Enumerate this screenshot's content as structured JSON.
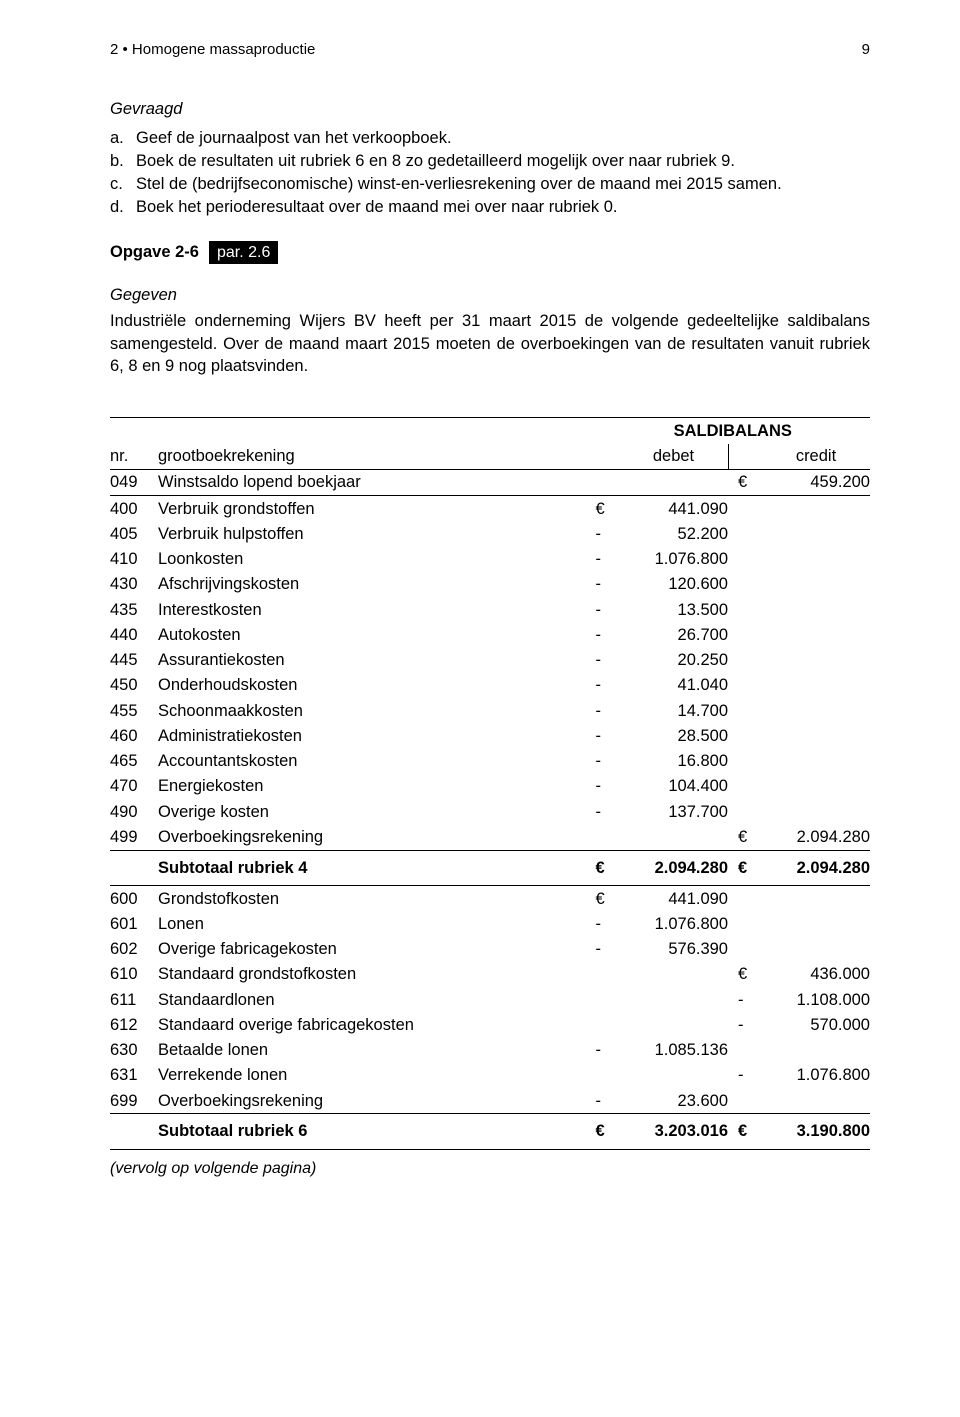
{
  "header": {
    "chapter": "2 • Homogene massaproductie",
    "page_number": "9"
  },
  "gevraagd": {
    "title": "Gevraagd",
    "items": [
      {
        "label": "a.",
        "text": "Geef de journaalpost van het verkoopboek."
      },
      {
        "label": "b.",
        "text": "Boek de resultaten uit rubriek 6 en 8 zo gedetailleerd mogelijk over naar rubriek 9."
      },
      {
        "label": "c.",
        "text": "Stel de (bedrijfseconomische) winst-en-verliesrekening over de maand mei 2015 samen."
      },
      {
        "label": "d.",
        "text": "Boek het perioderesultaat over de maand mei over naar rubriek 0."
      }
    ]
  },
  "opgave": {
    "label": "Opgave 2-6",
    "badge": "par. 2.6"
  },
  "gegeven": {
    "title": "Gegeven",
    "text": "Industriële onderneming Wijers BV heeft per 31 maart 2015 de volgende gedeeltelijke saldibalans samengesteld. Over de maand maart 2015 moeten de overboekingen van de resultaten vanuit rubriek 6, 8 en 9 nog plaatsvinden."
  },
  "table": {
    "header": {
      "saldibalans": "SALDIBALANS",
      "nr": "nr.",
      "name": "grootboekrekening",
      "debet": "debet",
      "credit": "credit"
    },
    "rows_049": [
      {
        "nr": "049",
        "name": "Winstsaldo lopend boekjaar",
        "debet_sym": "",
        "debet": "",
        "credit_sym": "€",
        "credit": "459.200"
      }
    ],
    "rows_4": [
      {
        "nr": "400",
        "name": "Verbruik grondstoffen",
        "debet_sym": "€",
        "debet": "441.090",
        "credit_sym": "",
        "credit": ""
      },
      {
        "nr": "405",
        "name": "Verbruik hulpstoffen",
        "debet_sym": "-",
        "debet": "52.200",
        "credit_sym": "",
        "credit": ""
      },
      {
        "nr": "410",
        "name": "Loonkosten",
        "debet_sym": "-",
        "debet": "1.076.800",
        "credit_sym": "",
        "credit": ""
      },
      {
        "nr": "430",
        "name": "Afschrijvingskosten",
        "debet_sym": "-",
        "debet": "120.600",
        "credit_sym": "",
        "credit": ""
      },
      {
        "nr": "435",
        "name": "Interestkosten",
        "debet_sym": "-",
        "debet": "13.500",
        "credit_sym": "",
        "credit": ""
      },
      {
        "nr": "440",
        "name": "Autokosten",
        "debet_sym": "-",
        "debet": "26.700",
        "credit_sym": "",
        "credit": ""
      },
      {
        "nr": "445",
        "name": "Assurantiekosten",
        "debet_sym": "-",
        "debet": "20.250",
        "credit_sym": "",
        "credit": ""
      },
      {
        "nr": "450",
        "name": "Onderhoudskosten",
        "debet_sym": "-",
        "debet": "41.040",
        "credit_sym": "",
        "credit": ""
      },
      {
        "nr": "455",
        "name": "Schoonmaakkosten",
        "debet_sym": "-",
        "debet": "14.700",
        "credit_sym": "",
        "credit": ""
      },
      {
        "nr": "460",
        "name": "Administratiekosten",
        "debet_sym": "-",
        "debet": "28.500",
        "credit_sym": "",
        "credit": ""
      },
      {
        "nr": "465",
        "name": "Accountantskosten",
        "debet_sym": "-",
        "debet": "16.800",
        "credit_sym": "",
        "credit": ""
      },
      {
        "nr": "470",
        "name": "Energiekosten",
        "debet_sym": "-",
        "debet": "104.400",
        "credit_sym": "",
        "credit": ""
      },
      {
        "nr": "490",
        "name": "Overige kosten",
        "debet_sym": "-",
        "debet": "137.700",
        "credit_sym": "",
        "credit": ""
      },
      {
        "nr": "499",
        "name": "Overboekingsrekening",
        "debet_sym": "",
        "debet": "",
        "credit_sym": "€",
        "credit": "2.094.280"
      }
    ],
    "subtotal_4": {
      "name": "Subtotaal rubriek 4",
      "debet_sym": "€",
      "debet": "2.094.280",
      "credit_sym": "€",
      "credit": "2.094.280"
    },
    "rows_6": [
      {
        "nr": "600",
        "name": "Grondstofkosten",
        "debet_sym": "€",
        "debet": "441.090",
        "credit_sym": "",
        "credit": ""
      },
      {
        "nr": "601",
        "name": "Lonen",
        "debet_sym": "-",
        "debet": "1.076.800",
        "credit_sym": "",
        "credit": ""
      },
      {
        "nr": "602",
        "name": "Overige fabricagekosten",
        "debet_sym": "-",
        "debet": "576.390",
        "credit_sym": "",
        "credit": ""
      },
      {
        "nr": "610",
        "name": "Standaard grondstofkosten",
        "debet_sym": "",
        "debet": "",
        "credit_sym": "€",
        "credit": "436.000"
      },
      {
        "nr": "611",
        "name": "Standaardlonen",
        "debet_sym": "",
        "debet": "",
        "credit_sym": "-",
        "credit": "1.108.000"
      },
      {
        "nr": "612",
        "name": "Standaard overige fabricagekosten",
        "debet_sym": "",
        "debet": "",
        "credit_sym": "-",
        "credit": "570.000"
      },
      {
        "nr": "630",
        "name": "Betaalde lonen",
        "debet_sym": "-",
        "debet": "1.085.136",
        "credit_sym": "",
        "credit": ""
      },
      {
        "nr": "631",
        "name": "Verrekende lonen",
        "debet_sym": "",
        "debet": "",
        "credit_sym": "-",
        "credit": "1.076.800"
      },
      {
        "nr": "699",
        "name": "Overboekingsrekening",
        "debet_sym": "-",
        "debet": "23.600",
        "credit_sym": "",
        "credit": ""
      }
    ],
    "subtotal_6": {
      "name": "Subtotaal rubriek 6",
      "debet_sym": "€",
      "debet": "3.203.016",
      "credit_sym": "€",
      "credit": "3.190.800"
    },
    "vervolg": "(vervolg op volgende pagina)"
  }
}
